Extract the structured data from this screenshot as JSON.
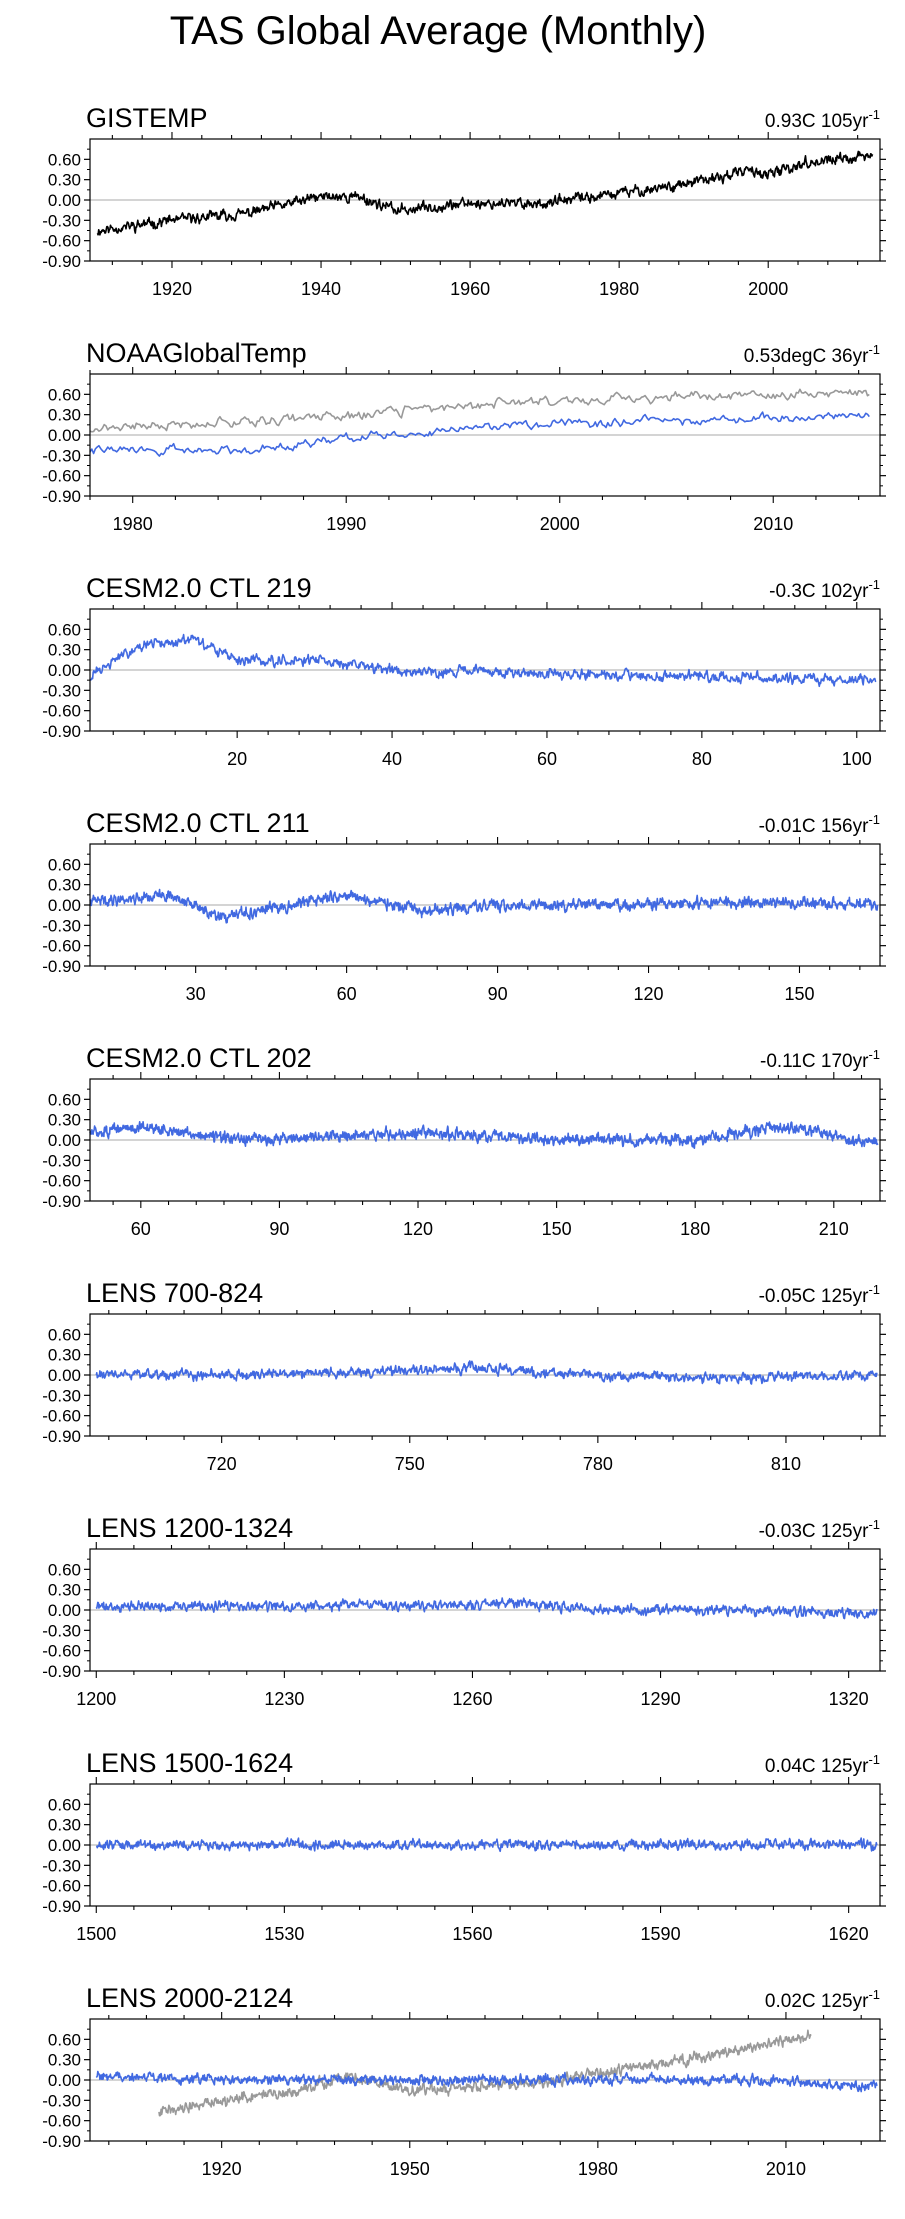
{
  "title": "TAS Global Average (Monthly)",
  "colors": {
    "obs": "#000000",
    "model": "#4169e1",
    "reference": "#999999",
    "zero_line": "#aaaaaa"
  },
  "chart_data": [
    {
      "type": "line",
      "title": "GISTEMP",
      "trend_label": "0.93C 105yr",
      "trend_sup": "-1",
      "xlim": [
        1909,
        2015
      ],
      "ylim": [
        -0.9,
        0.9
      ],
      "yticks": [
        "0.60",
        "0.30",
        "0.00",
        "-0.30",
        "-0.60",
        "-0.90"
      ],
      "xticks": [
        1920,
        1940,
        1960,
        1980,
        2000
      ],
      "series": [
        {
          "color": "#000000",
          "start": 1910,
          "end": 2014,
          "segments": [
            [
              1910,
              -0.45
            ],
            [
              1920,
              -0.3
            ],
            [
              1930,
              -0.2
            ],
            [
              1940,
              0.05
            ],
            [
              1945,
              0.05
            ],
            [
              1950,
              -0.15
            ],
            [
              1960,
              -0.05
            ],
            [
              1970,
              -0.05
            ],
            [
              1980,
              0.1
            ],
            [
              1990,
              0.25
            ],
            [
              1998,
              0.45
            ],
            [
              2000,
              0.35
            ],
            [
              2005,
              0.55
            ],
            [
              2010,
              0.6
            ],
            [
              2014,
              0.65
            ]
          ],
          "noise": 0.11,
          "seed": 11
        }
      ]
    },
    {
      "type": "line",
      "title": "NOAAGlobalTemp",
      "trend_label": "0.53degC 36yr",
      "trend_sup": "-1",
      "xlim": [
        1978,
        2015
      ],
      "ylim": [
        -0.9,
        0.9
      ],
      "yticks": [
        "0.60",
        "0.30",
        "0.00",
        "-0.30",
        "-0.60",
        "-0.90"
      ],
      "xticks": [
        1980,
        1990,
        2000,
        2010
      ],
      "series": [
        {
          "color": "#999999",
          "start": 1978,
          "end": 2014.5,
          "segments": [
            [
              1978,
              0.1
            ],
            [
              1990,
              0.28
            ],
            [
              1998,
              0.5
            ],
            [
              2005,
              0.55
            ],
            [
              2014,
              0.62
            ]
          ],
          "noise": 0.1,
          "seed": 21
        },
        {
          "color": "#4169e1",
          "start": 1978,
          "end": 2014.5,
          "segments": [
            [
              1978,
              -0.22
            ],
            [
              1985,
              -0.22
            ],
            [
              1990,
              -0.05
            ],
            [
              1998,
              0.15
            ],
            [
              2005,
              0.2
            ],
            [
              2014,
              0.3
            ]
          ],
          "noise": 0.09,
          "seed": 22
        }
      ]
    },
    {
      "type": "line",
      "title": "CESM2.0 CTL 219",
      "trend_label": "-0.3C 102yr",
      "trend_sup": "-1",
      "xlim": [
        1,
        103
      ],
      "ylim": [
        -0.9,
        0.9
      ],
      "yticks": [
        "0.60",
        "0.30",
        "0.00",
        "-0.30",
        "-0.60",
        "-0.90"
      ],
      "xticks": [
        20,
        40,
        60,
        80,
        100
      ],
      "series": [
        {
          "color": "#4169e1",
          "start": 1,
          "end": 102.5,
          "segments": [
            [
              1,
              -0.1
            ],
            [
              7,
              0.35
            ],
            [
              14,
              0.45
            ],
            [
              20,
              0.15
            ],
            [
              30,
              0.15
            ],
            [
              40,
              0.0
            ],
            [
              60,
              -0.05
            ],
            [
              80,
              -0.1
            ],
            [
              100,
              -0.15
            ]
          ],
          "noise": 0.11,
          "seed": 31
        }
      ]
    },
    {
      "type": "line",
      "title": "CESM2.0 CTL 211",
      "trend_label": "-0.01C 156yr",
      "trend_sup": "-1",
      "xlim": [
        9,
        166
      ],
      "ylim": [
        -0.9,
        0.9
      ],
      "yticks": [
        "0.60",
        "0.30",
        "0.00",
        "-0.30",
        "-0.60",
        "-0.90"
      ],
      "xticks": [
        30,
        60,
        90,
        120,
        150
      ],
      "series": [
        {
          "color": "#4169e1",
          "start": 9,
          "end": 165.5,
          "segments": [
            [
              9,
              0.05
            ],
            [
              25,
              0.15
            ],
            [
              35,
              -0.2
            ],
            [
              45,
              -0.05
            ],
            [
              60,
              0.15
            ],
            [
              75,
              -0.1
            ],
            [
              90,
              0.0
            ],
            [
              120,
              0.0
            ],
            [
              140,
              0.05
            ],
            [
              165,
              0.0
            ]
          ],
          "noise": 0.11,
          "seed": 41
        }
      ]
    },
    {
      "type": "line",
      "title": "CESM2.0 CTL 202",
      "trend_label": "-0.11C 170yr",
      "trend_sup": "-1",
      "xlim": [
        49,
        220
      ],
      "ylim": [
        -0.9,
        0.9
      ],
      "yticks": [
        "0.60",
        "0.30",
        "0.00",
        "-0.30",
        "-0.60",
        "-0.90"
      ],
      "xticks": [
        60,
        90,
        120,
        150,
        180,
        210
      ],
      "series": [
        {
          "color": "#4169e1",
          "start": 49,
          "end": 219.5,
          "segments": [
            [
              49,
              0.1
            ],
            [
              60,
              0.2
            ],
            [
              80,
              0.0
            ],
            [
              120,
              0.1
            ],
            [
              150,
              0.0
            ],
            [
              180,
              0.0
            ],
            [
              200,
              0.2
            ],
            [
              219,
              -0.05
            ]
          ],
          "noise": 0.11,
          "seed": 51
        }
      ]
    },
    {
      "type": "line",
      "title": "LENS 700-824",
      "trend_label": "-0.05C 125yr",
      "trend_sup": "-1",
      "xlim": [
        699,
        825
      ],
      "ylim": [
        -0.9,
        0.9
      ],
      "yticks": [
        "0.60",
        "0.30",
        "0.00",
        "-0.30",
        "-0.60",
        "-0.90"
      ],
      "xticks": [
        720,
        750,
        780,
        810
      ],
      "series": [
        {
          "color": "#4169e1",
          "start": 700,
          "end": 824.5,
          "segments": [
            [
              700,
              0.0
            ],
            [
              720,
              0.0
            ],
            [
              745,
              0.05
            ],
            [
              760,
              0.1
            ],
            [
              780,
              0.0
            ],
            [
              800,
              -0.05
            ],
            [
              824,
              0.0
            ]
          ],
          "noise": 0.1,
          "seed": 61
        }
      ]
    },
    {
      "type": "line",
      "title": "LENS 1200-1324",
      "trend_label": "-0.03C 125yr",
      "trend_sup": "-1",
      "xlim": [
        1199,
        1325
      ],
      "ylim": [
        -0.9,
        0.9
      ],
      "yticks": [
        "0.60",
        "0.30",
        "0.00",
        "-0.30",
        "-0.60",
        "-0.90"
      ],
      "xticks": [
        1200,
        1230,
        1260,
        1290,
        1320
      ],
      "series": [
        {
          "color": "#4169e1",
          "start": 1200,
          "end": 1324.5,
          "segments": [
            [
              1200,
              0.05
            ],
            [
              1230,
              0.05
            ],
            [
              1265,
              0.1
            ],
            [
              1280,
              0.0
            ],
            [
              1300,
              0.0
            ],
            [
              1324,
              -0.05
            ]
          ],
          "noise": 0.1,
          "seed": 71
        }
      ]
    },
    {
      "type": "line",
      "title": "LENS 1500-1624",
      "trend_label": "0.04C 125yr",
      "trend_sup": "-1",
      "xlim": [
        1499,
        1625
      ],
      "ylim": [
        -0.9,
        0.9
      ],
      "yticks": [
        "0.60",
        "0.30",
        "0.00",
        "-0.30",
        "-0.60",
        "-0.90"
      ],
      "xticks": [
        1500,
        1530,
        1560,
        1590,
        1620
      ],
      "series": [
        {
          "color": "#4169e1",
          "start": 1500,
          "end": 1624.5,
          "segments": [
            [
              1500,
              0.0
            ],
            [
              1530,
              0.0
            ],
            [
              1560,
              0.0
            ],
            [
              1590,
              0.0
            ],
            [
              1624,
              0.0
            ]
          ],
          "noise": 0.1,
          "seed": 81
        }
      ]
    },
    {
      "type": "line",
      "title": "LENS 2000-2124",
      "trend_label": "0.02C 125yr",
      "trend_sup": "-1",
      "xlim": [
        1899,
        2025
      ],
      "ylim": [
        -0.9,
        0.9
      ],
      "yticks": [
        "0.60",
        "0.30",
        "0.00",
        "-0.30",
        "-0.60",
        "-0.90"
      ],
      "xticks": [
        1920,
        1950,
        1980,
        2010
      ],
      "series": [
        {
          "color": "#999999",
          "start": 1910,
          "end": 2014,
          "segments": [
            [
              1910,
              -0.45
            ],
            [
              1920,
              -0.3
            ],
            [
              1930,
              -0.2
            ],
            [
              1940,
              0.05
            ],
            [
              1950,
              -0.15
            ],
            [
              1970,
              -0.05
            ],
            [
              1980,
              0.1
            ],
            [
              1990,
              0.25
            ],
            [
              2000,
              0.4
            ],
            [
              2014,
              0.65
            ]
          ],
          "noise": 0.11,
          "seed": 91
        },
        {
          "color": "#4169e1",
          "start": 1900,
          "end": 2024.5,
          "segments": [
            [
              1900,
              0.05
            ],
            [
              1930,
              0.0
            ],
            [
              1960,
              0.0
            ],
            [
              1990,
              0.0
            ],
            [
              2010,
              0.0
            ],
            [
              2024,
              -0.1
            ]
          ],
          "noise": 0.1,
          "seed": 92
        }
      ]
    }
  ]
}
